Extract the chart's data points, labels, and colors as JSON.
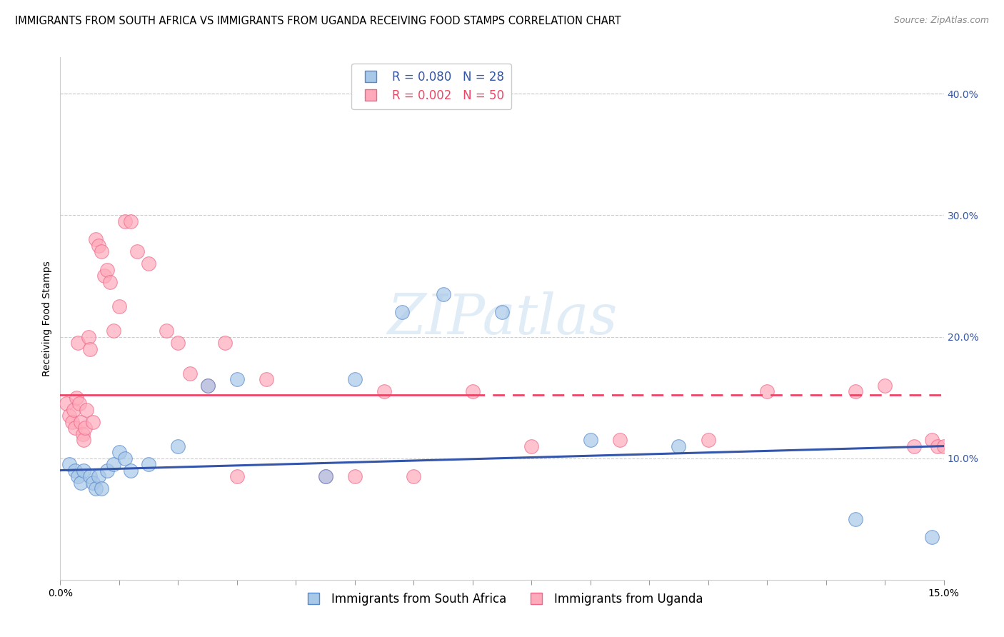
{
  "title": "IMMIGRANTS FROM SOUTH AFRICA VS IMMIGRANTS FROM UGANDA RECEIVING FOOD STAMPS CORRELATION CHART",
  "source": "Source: ZipAtlas.com",
  "ylabel": "Receiving Food Stamps",
  "xlim": [
    0.0,
    15.0
  ],
  "ylim": [
    0.0,
    43.0
  ],
  "yticks_right": [
    10.0,
    20.0,
    30.0,
    40.0
  ],
  "ytick_labels_right": [
    "10.0%",
    "20.0%",
    "30.0%",
    "40.0%"
  ],
  "south_africa_color": "#a8c8e8",
  "south_africa_edge": "#5588cc",
  "uganda_color": "#ffaabb",
  "uganda_edge": "#ee6688",
  "blue_line_color": "#3355aa",
  "pink_line_color": "#ee4466",
  "watermark": "ZIPatlas",
  "south_africa_x": [
    0.15,
    0.25,
    0.3,
    0.35,
    0.4,
    0.5,
    0.55,
    0.6,
    0.65,
    0.7,
    0.8,
    0.9,
    1.0,
    1.1,
    1.2,
    1.5,
    2.0,
    2.5,
    3.0,
    4.5,
    5.0,
    5.8,
    6.5,
    7.5,
    9.0,
    10.5,
    13.5,
    14.8
  ],
  "south_africa_y": [
    9.5,
    9.0,
    8.5,
    8.0,
    9.0,
    8.5,
    8.0,
    7.5,
    8.5,
    7.5,
    9.0,
    9.5,
    10.5,
    10.0,
    9.0,
    9.5,
    11.0,
    16.0,
    16.5,
    8.5,
    16.5,
    22.0,
    23.5,
    22.0,
    11.5,
    11.0,
    5.0,
    3.5
  ],
  "uganda_x": [
    0.1,
    0.15,
    0.2,
    0.22,
    0.25,
    0.28,
    0.3,
    0.32,
    0.35,
    0.38,
    0.4,
    0.42,
    0.45,
    0.48,
    0.5,
    0.55,
    0.6,
    0.65,
    0.7,
    0.75,
    0.8,
    0.85,
    0.9,
    1.0,
    1.1,
    1.2,
    1.3,
    1.5,
    1.8,
    2.0,
    2.2,
    2.5,
    2.8,
    3.0,
    3.5,
    4.5,
    5.0,
    5.5,
    6.0,
    7.0,
    8.0,
    9.5,
    11.0,
    12.0,
    13.5,
    14.0,
    14.5,
    14.8,
    14.9,
    15.0
  ],
  "uganda_y": [
    14.5,
    13.5,
    13.0,
    14.0,
    12.5,
    15.0,
    19.5,
    14.5,
    13.0,
    12.0,
    11.5,
    12.5,
    14.0,
    20.0,
    19.0,
    13.0,
    28.0,
    27.5,
    27.0,
    25.0,
    25.5,
    24.5,
    20.5,
    22.5,
    29.5,
    29.5,
    27.0,
    26.0,
    20.5,
    19.5,
    17.0,
    16.0,
    19.5,
    8.5,
    16.5,
    8.5,
    8.5,
    15.5,
    8.5,
    15.5,
    11.0,
    11.5,
    11.5,
    15.5,
    15.5,
    16.0,
    11.0,
    11.5,
    11.0,
    11.0
  ],
  "title_fontsize": 10.5,
  "axis_label_fontsize": 10,
  "tick_fontsize": 10,
  "legend_fontsize": 12,
  "source_fontsize": 9
}
